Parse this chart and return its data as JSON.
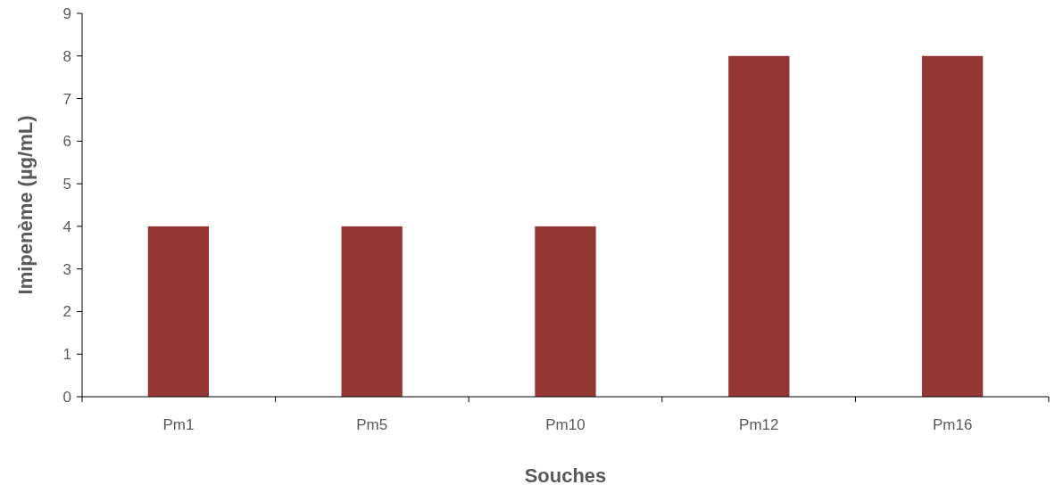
{
  "chart_data": {
    "type": "bar",
    "xlabel": "Souches",
    "ylabel": "Imipenème (µg/mL)",
    "categories": [
      "Pm1",
      "Pm5",
      "Pm10",
      "Pm12",
      "Pm16"
    ],
    "values": [
      4,
      4,
      4,
      8,
      8
    ],
    "color": "#943634",
    "ylim": [
      0,
      9
    ],
    "yticks": [
      0,
      1,
      2,
      3,
      4,
      5,
      6,
      7,
      8,
      9
    ],
    "grid": false
  }
}
